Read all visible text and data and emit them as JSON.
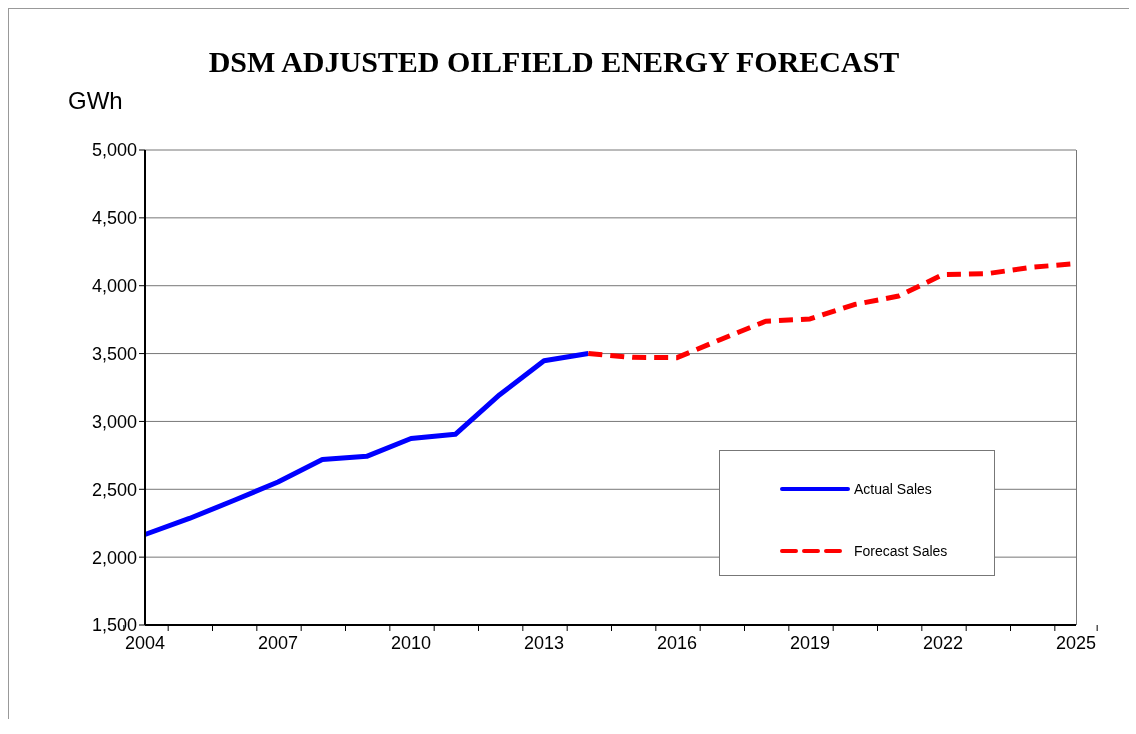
{
  "chart_data": {
    "type": "line",
    "title": "DSM ADJUSTED OILFIELD ENERGY FORECAST",
    "ylabel": "GWh",
    "categories": [
      "2004",
      null,
      null,
      "2007",
      null,
      null,
      "2010",
      null,
      null,
      "2013",
      null,
      null,
      "2016",
      null,
      null,
      "2019",
      null,
      null,
      "2022",
      null,
      null,
      "2025"
    ],
    "series": [
      {
        "name": "Actual Sales",
        "color": "#0000ff",
        "line_style": "solid",
        "values": [
          2167,
          2285,
          2417,
          2554,
          2719,
          2743,
          2874,
          2905,
          3197,
          3447,
          3500,
          null,
          null,
          null,
          null,
          null,
          null,
          null,
          null,
          null,
          null,
          null
        ]
      },
      {
        "name": "Forecast Sales",
        "color": "#ff0000",
        "line_style": "dashed",
        "values": [
          null,
          null,
          null,
          null,
          null,
          null,
          null,
          null,
          null,
          null,
          3500,
          3472,
          3470,
          3606,
          3738,
          3755,
          3861,
          3924,
          4082,
          4089,
          4136,
          4163
        ]
      }
    ],
    "ylim": [
      1500,
      5000
    ],
    "yticks": [
      {
        "value": 1500,
        "label": "1,500"
      },
      {
        "value": 2000,
        "label": "2,000"
      },
      {
        "value": 2500,
        "label": "2,500"
      },
      {
        "value": 3000,
        "label": "3,000"
      },
      {
        "value": 3500,
        "label": "3,500"
      },
      {
        "value": 4000,
        "label": "4,000"
      },
      {
        "value": 4500,
        "label": "4,500"
      },
      {
        "value": 5000,
        "label": "5,000"
      }
    ],
    "grid": "y",
    "legend": "bottom right",
    "marker": "none"
  }
}
